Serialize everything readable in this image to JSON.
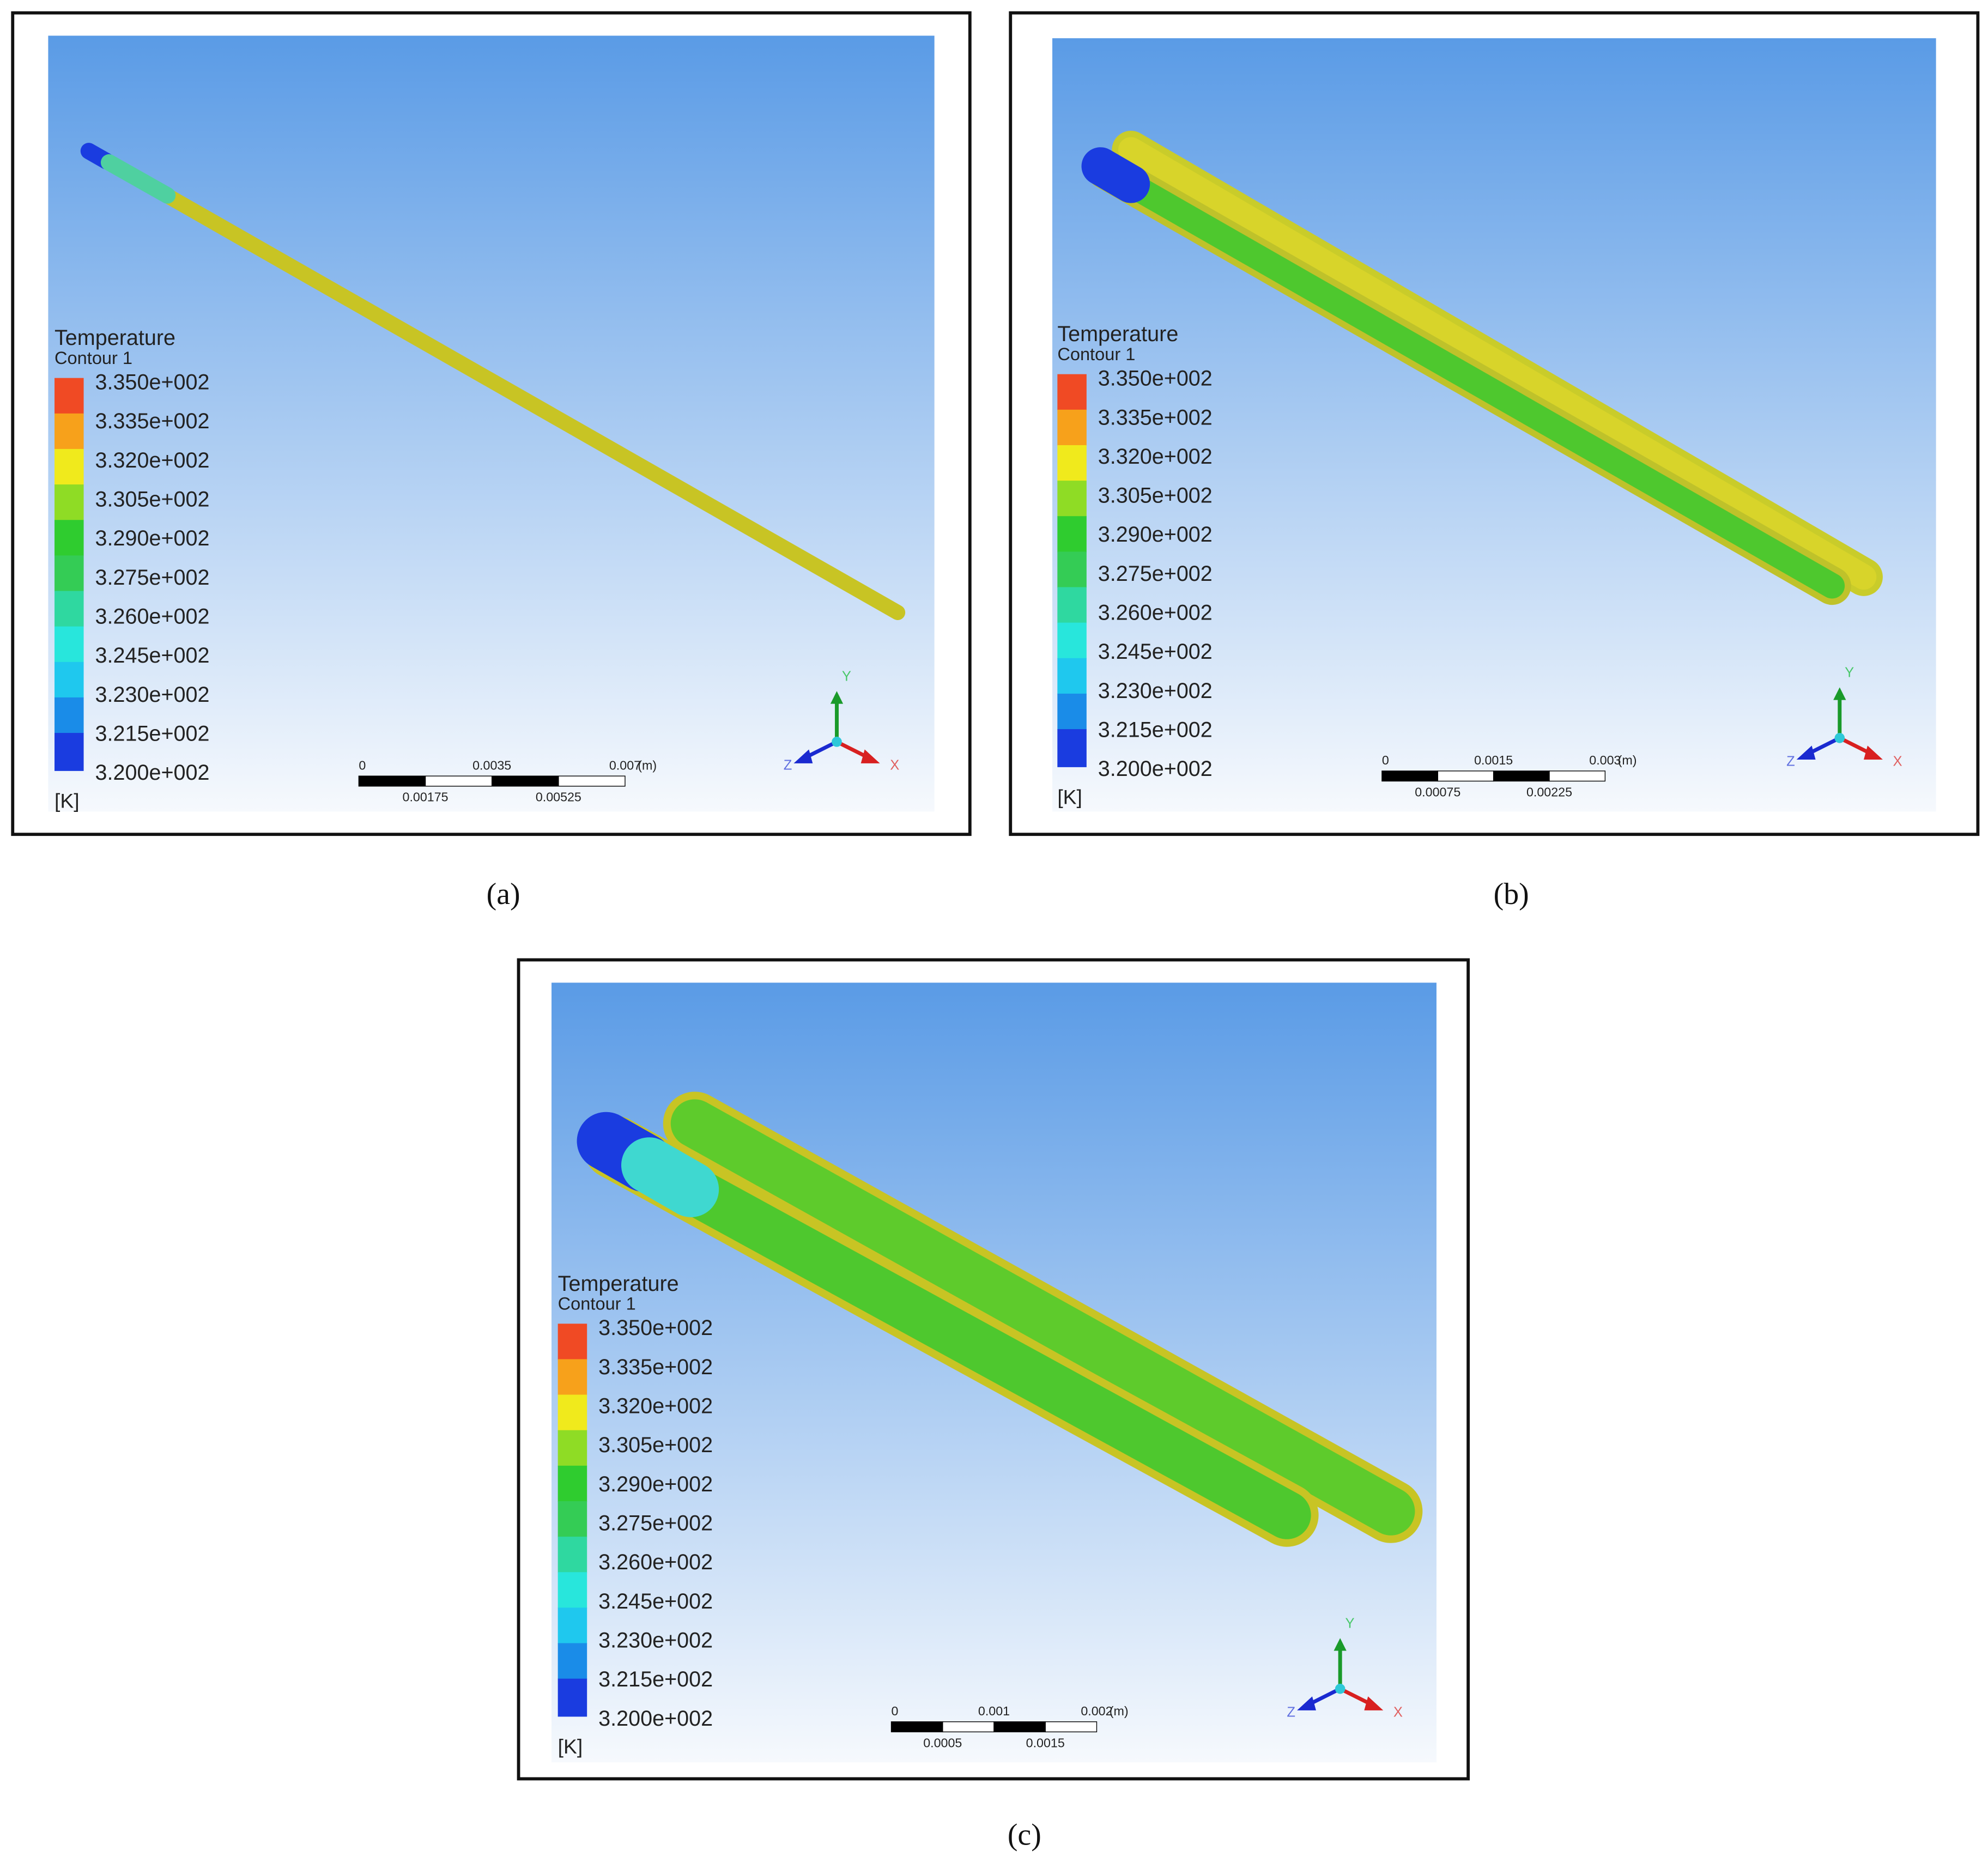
{
  "panels": [
    {
      "legend": {
        "title": "Temperature",
        "subtitle": "Contour 1",
        "levels": [
          "3.350e+002",
          "3.335e+002",
          "3.320e+002",
          "3.305e+002",
          "3.290e+002",
          "3.275e+002",
          "3.260e+002",
          "3.245e+002",
          "3.230e+002",
          "3.215e+002",
          "3.200e+002"
        ],
        "unit": "[K]"
      },
      "scale": {
        "top": [
          "0",
          "0.0035",
          "0.007"
        ],
        "unit": "(m)",
        "bottom": [
          "0.00175",
          "0.00525"
        ]
      },
      "axes": {
        "y": "Y",
        "x": "X",
        "z": "Z"
      },
      "caption": "(a)"
    },
    {
      "legend": {
        "title": "Temperature",
        "subtitle": "Contour 1",
        "levels": [
          "3.350e+002",
          "3.335e+002",
          "3.320e+002",
          "3.305e+002",
          "3.290e+002",
          "3.275e+002",
          "3.260e+002",
          "3.245e+002",
          "3.230e+002",
          "3.215e+002",
          "3.200e+002"
        ],
        "unit": "[K]"
      },
      "scale": {
        "top": [
          "0",
          "0.0015",
          "0.003"
        ],
        "unit": "(m)",
        "bottom": [
          "0.00075",
          "0.00225"
        ]
      },
      "axes": {
        "y": "Y",
        "x": "X",
        "z": "Z"
      },
      "caption": "(b)"
    },
    {
      "legend": {
        "title": "Temperature",
        "subtitle": "Contour 1",
        "levels": [
          "3.350e+002",
          "3.335e+002",
          "3.320e+002",
          "3.305e+002",
          "3.290e+002",
          "3.275e+002",
          "3.260e+002",
          "3.245e+002",
          "3.230e+002",
          "3.215e+002",
          "3.200e+002"
        ],
        "unit": "[K]"
      },
      "scale": {
        "top": [
          "0",
          "0.001",
          "0.002"
        ],
        "unit": "(m)",
        "bottom": [
          "0.0005",
          "0.0015"
        ]
      },
      "axes": {
        "y": "Y",
        "x": "X",
        "z": "Z"
      },
      "caption": "(c)"
    }
  ]
}
